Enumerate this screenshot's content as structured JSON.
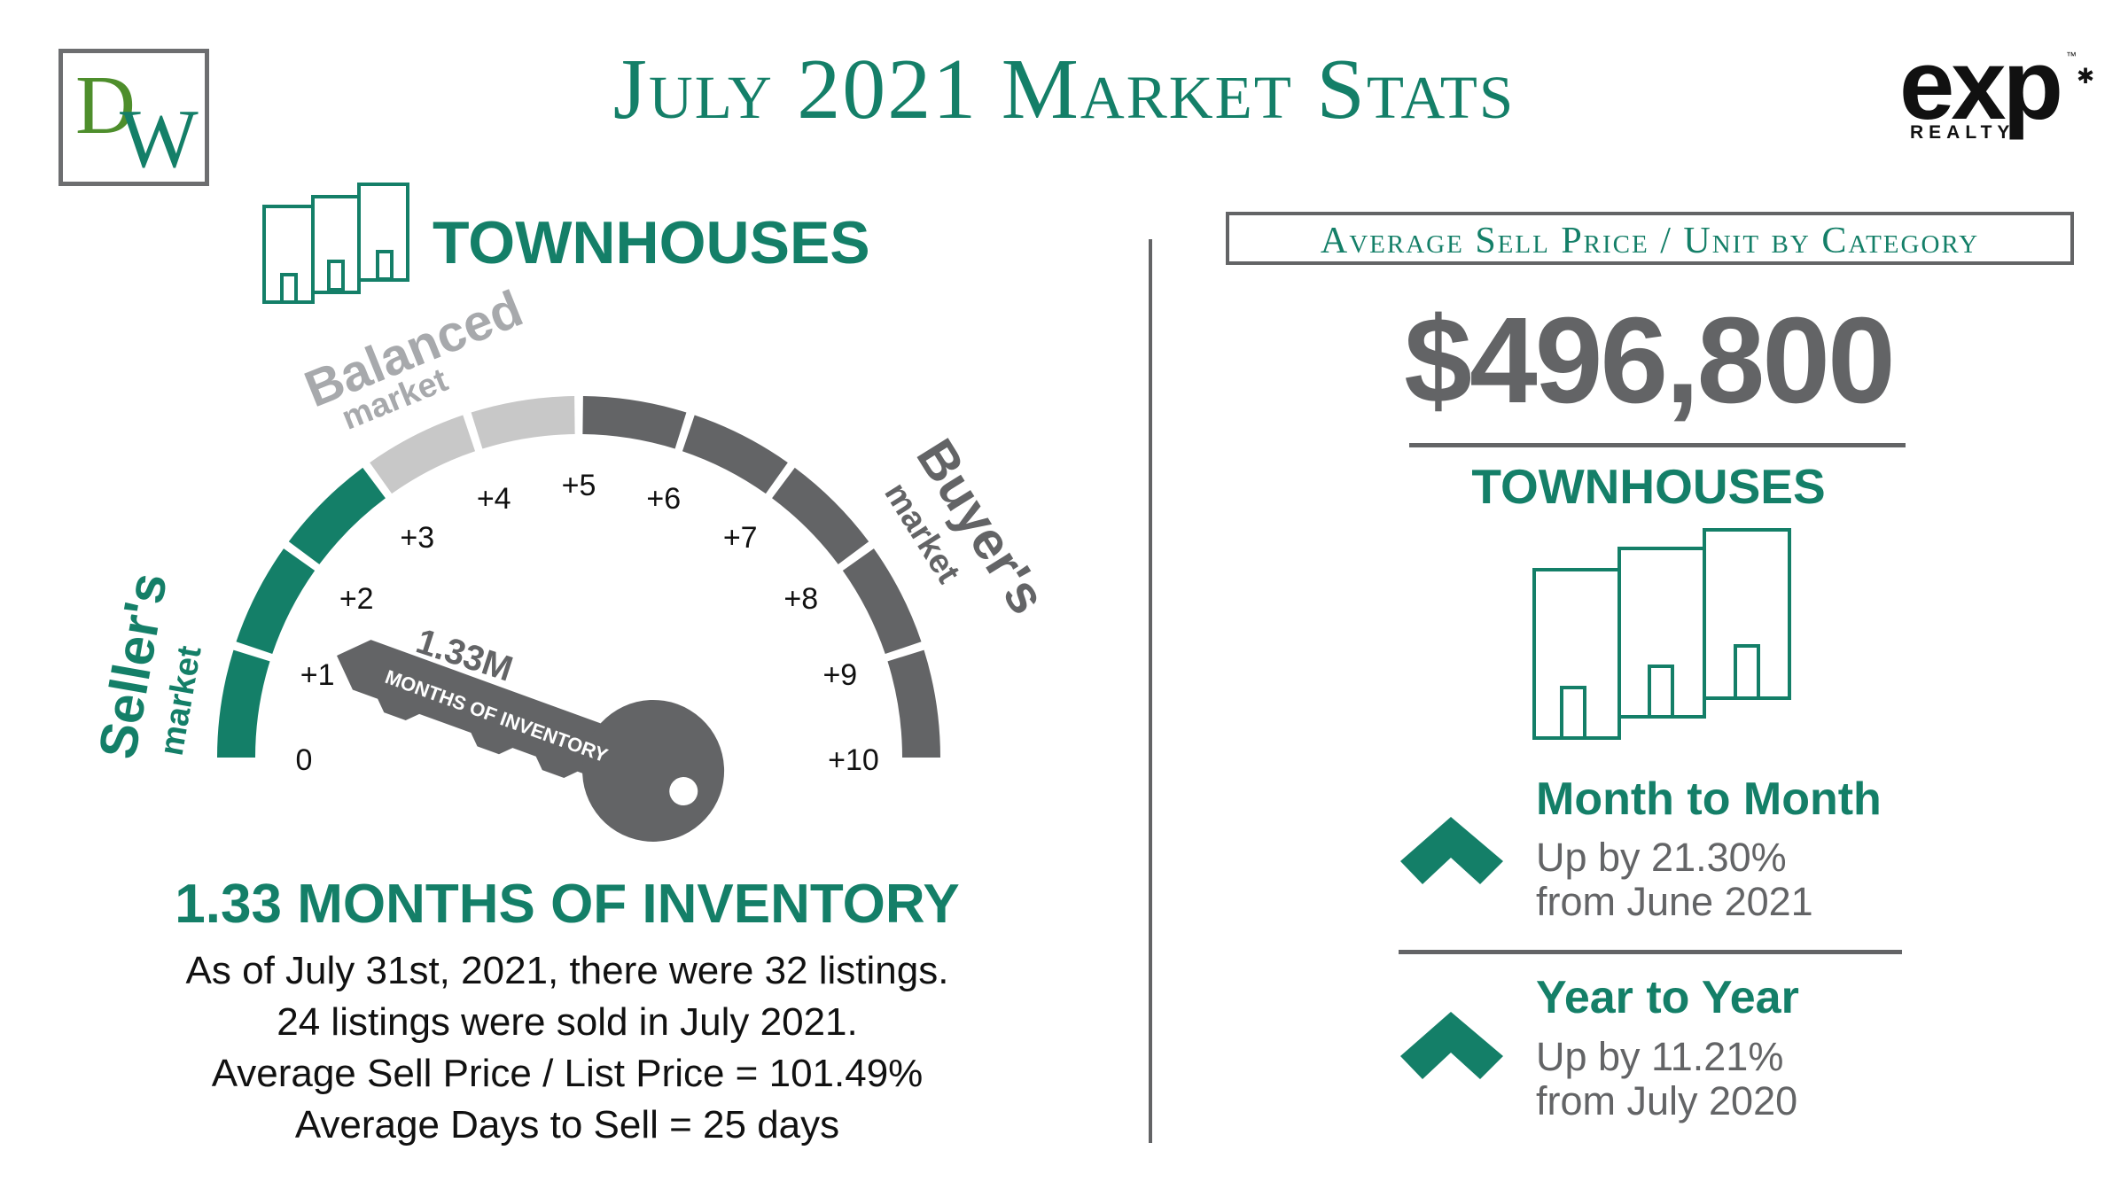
{
  "header": {
    "title": "July 2021 Market Stats",
    "left_logo": {
      "letter_d": "D",
      "letter_w": "W"
    },
    "right_logo": {
      "wordmark": "exp",
      "subtitle": "REALTY",
      "tm": "™"
    }
  },
  "gauge": {
    "category_label": "TOWNHOUSES",
    "value": 1.33,
    "value_label": "1.33M",
    "key_caption": "MONTHS OF INVENTORY",
    "scale": [
      "0",
      "+1",
      "+2",
      "+3",
      "+4",
      "+5",
      "+6",
      "+7",
      "+8",
      "+9",
      "+10"
    ],
    "zones": {
      "seller": {
        "big": "Seller's",
        "small": "market"
      },
      "balanced": {
        "big": "Balanced",
        "small": "market"
      },
      "buyer": {
        "big": "Buyer's",
        "small": "market"
      }
    }
  },
  "inventory": {
    "headline": "1.33 MONTHS OF INVENTORY",
    "lines": [
      "As of July 31st, 2021, there were 32 listings.",
      "24 listings were sold in July 2021.",
      "Average Sell Price / List Price = 101.49%",
      "Average Days to Sell = 25 days"
    ]
  },
  "average": {
    "box_label": "Average Sell Price / Unit by Category",
    "price": "$496,800",
    "category": "TOWNHOUSES"
  },
  "changes": [
    {
      "title": "Month to Month",
      "line1": "Up by 21.30%",
      "line2": "from June 2021",
      "direction": "up"
    },
    {
      "title": "Year to Year",
      "line1": "Up by 11.21%",
      "line2": "from July 2020",
      "direction": "up"
    }
  ],
  "colors": {
    "accent": "#147f68",
    "gray": "#636466",
    "light_gray": "#c8c8c8",
    "dw_green": "#4e8e2c"
  }
}
